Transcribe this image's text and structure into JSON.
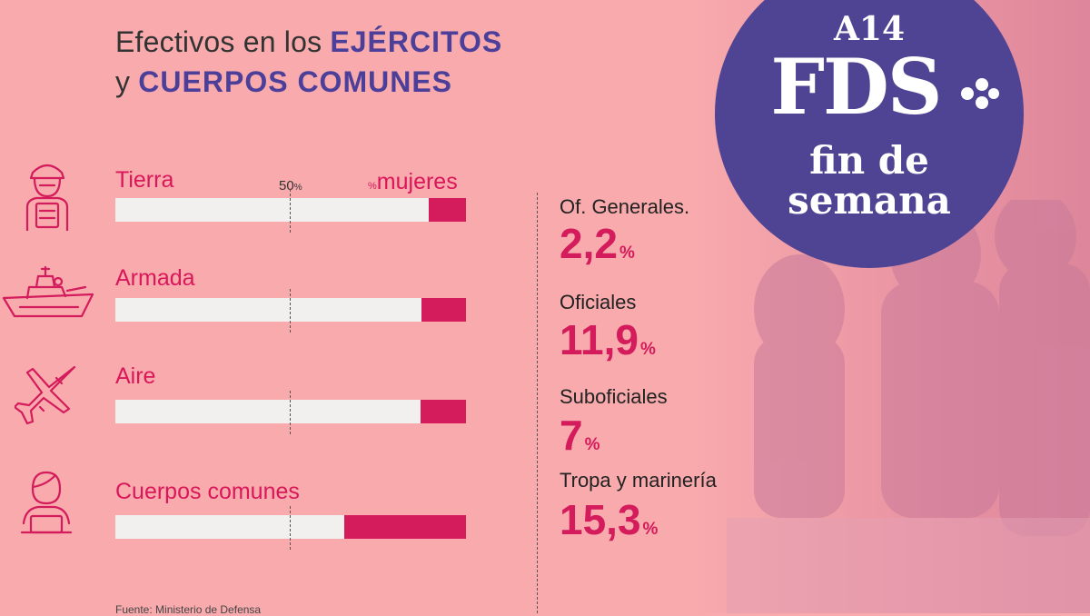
{
  "title": {
    "line1_prefix": "Efectivos en los ",
    "line1_strong": "EJÉRCITOS",
    "line2_prefix": "y ",
    "line2_strong": "CUERPOS COMUNES"
  },
  "colors": {
    "accent": "#d41b5b",
    "brand": "#4f4393",
    "background": "#f8aaad",
    "track": "#f2efef"
  },
  "chart_data": {
    "type": "bar",
    "orientation": "horizontal",
    "stacked_100": true,
    "categories": [
      "Tierra",
      "Armada",
      "Aire",
      "Cuerpos comunes"
    ],
    "series": [
      {
        "name": "mujeres",
        "values": [
          10.5,
          12.8,
          12.9,
          34.6
        ]
      }
    ],
    "xlim": [
      0,
      100
    ],
    "reference_line": {
      "value": 50,
      "label": "50",
      "unit": "%"
    },
    "legend_label": {
      "unit": "%",
      "text": "mujeres"
    }
  },
  "stats": [
    {
      "label": "Of. Generales.",
      "value": "2,2",
      "unit": "%"
    },
    {
      "label": "Oficiales",
      "value": "11,9",
      "unit": "%"
    },
    {
      "label": "Suboficiales",
      "value": "7",
      "unit": "%"
    },
    {
      "label": "Tropa y marinería",
      "value": "15,3",
      "unit": "%"
    }
  ],
  "badge": {
    "top": "A14",
    "logo": "FDS",
    "line1": "fin de",
    "line2": "semana"
  },
  "source": "Fuente: Ministerio de Defensa",
  "icons": [
    "soldier-icon",
    "warship-icon",
    "fighter-jet-icon",
    "office-worker-icon",
    "soldiers-photo"
  ]
}
